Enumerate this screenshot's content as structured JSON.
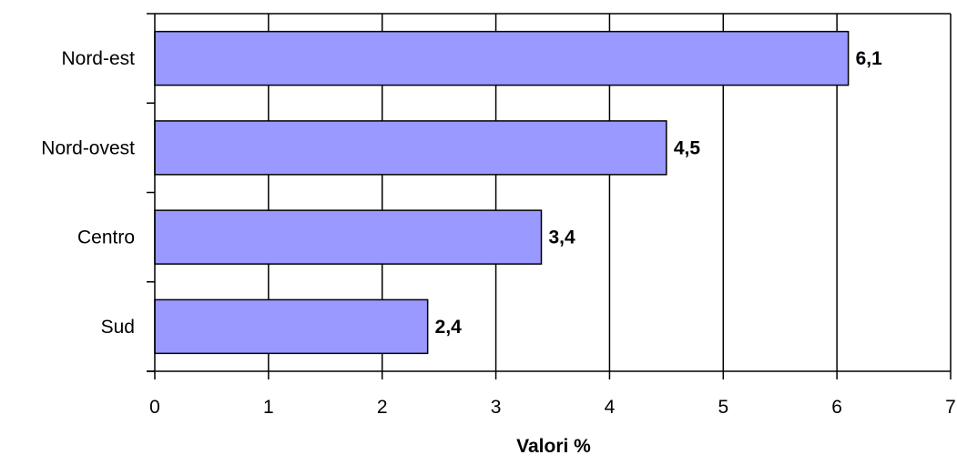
{
  "chart_data": {
    "type": "bar",
    "orientation": "horizontal",
    "title": "",
    "xlabel": "Valori %",
    "ylabel": "",
    "categories": [
      "Nord-est",
      "Nord-ovest",
      "Centro",
      "Sud"
    ],
    "values": [
      6.1,
      4.5,
      3.4,
      2.4
    ],
    "data_labels": [
      "6,1",
      "4,5",
      "3,4",
      "2,4"
    ],
    "xlim": [
      0,
      7
    ],
    "x_ticks": [
      0,
      1,
      2,
      3,
      4,
      5,
      6,
      7
    ],
    "x_tick_labels": [
      "0",
      "1",
      "2",
      "3",
      "4",
      "5",
      "6",
      "7"
    ],
    "grid": "vertical",
    "legend": "none",
    "bar_color": "#9999ff",
    "bar_edge_color": "#000000"
  }
}
